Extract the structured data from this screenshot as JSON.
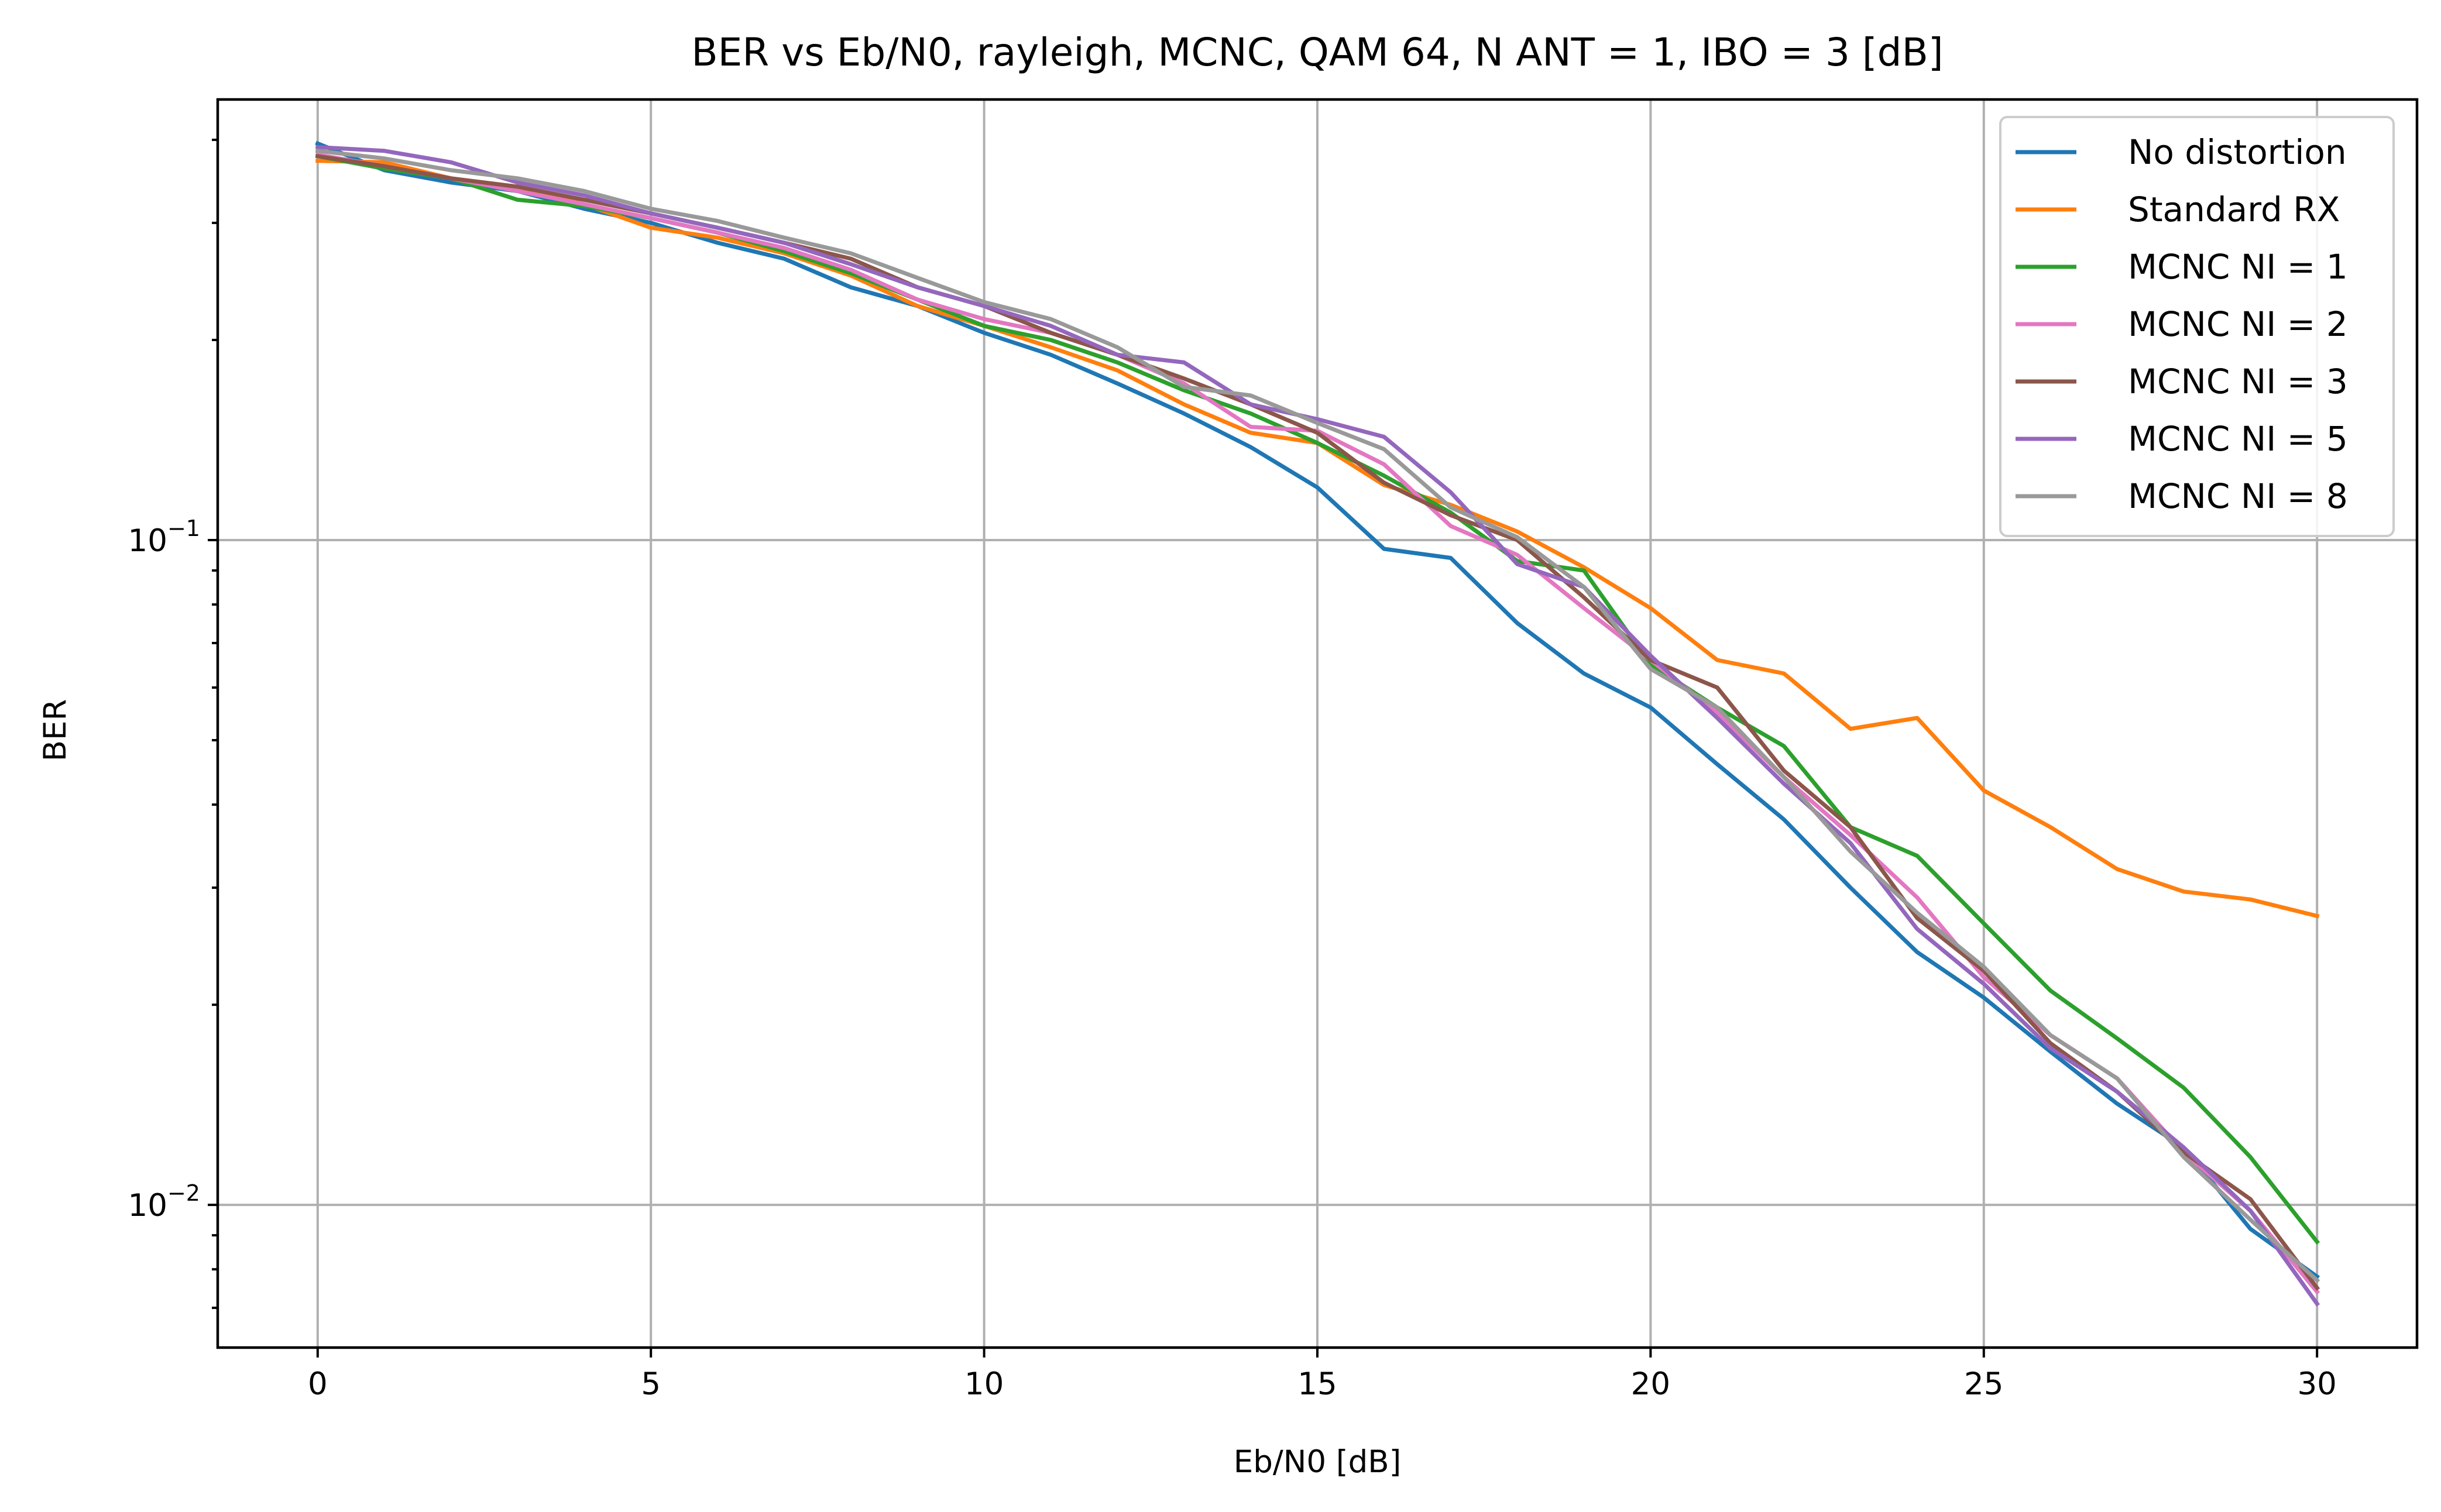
{
  "chart_data": {
    "type": "line",
    "title": "BER vs Eb/N0, rayleigh, MCNC, QAM 64, N ANT = 1, IBO = 3 [dB]",
    "xlabel": "Eb/N0 [dB]",
    "ylabel": "BER",
    "xlim": [
      -1.5,
      31.5
    ],
    "ylim": [
      0.0061,
      0.46
    ],
    "yscale": "log",
    "grid": true,
    "legend_position": "top-right",
    "x_ticks": [
      0,
      5,
      10,
      15,
      20,
      25,
      30
    ],
    "x_tick_labels": [
      "0",
      "5",
      "10",
      "15",
      "20",
      "25",
      "30"
    ],
    "y_major_ticks": [
      0.01,
      0.1
    ],
    "y_minor_ticks": [
      0.007,
      0.008,
      0.009,
      0.02,
      0.03,
      0.04,
      0.05,
      0.06,
      0.07,
      0.08,
      0.09,
      0.2,
      0.3,
      0.4
    ],
    "y_tick_labels": [
      {
        "base": "10",
        "exp": "−2"
      },
      {
        "base": "10",
        "exp": "−1"
      }
    ],
    "x": [
      0,
      1,
      2,
      3,
      4,
      5,
      6,
      7,
      8,
      9,
      10,
      11,
      12,
      13,
      14,
      15,
      16,
      17,
      18,
      19,
      20,
      21,
      22,
      23,
      24,
      25,
      26,
      27,
      28,
      29,
      30
    ],
    "series": [
      {
        "name": "No distortion",
        "color": "#1f77b4",
        "values": [
          0.395,
          0.36,
          0.345,
          0.335,
          0.315,
          0.3,
          0.28,
          0.265,
          0.24,
          0.225,
          0.205,
          0.19,
          0.172,
          0.155,
          0.138,
          0.12,
          0.097,
          0.094,
          0.075,
          0.063,
          0.056,
          0.046,
          0.038,
          0.03,
          0.024,
          0.0205,
          0.017,
          0.0142,
          0.0122,
          0.0092,
          0.0078
        ]
      },
      {
        "name": "Standard RX",
        "color": "#ff7f0e",
        "values": [
          0.372,
          0.37,
          0.35,
          0.34,
          0.32,
          0.295,
          0.285,
          0.27,
          0.25,
          0.225,
          0.21,
          0.195,
          0.18,
          0.16,
          0.145,
          0.14,
          0.121,
          0.113,
          0.103,
          0.091,
          0.079,
          0.066,
          0.063,
          0.052,
          0.054,
          0.042,
          0.037,
          0.032,
          0.0296,
          0.0288,
          0.0272
        ]
      },
      {
        "name": "MCNC NI = 1",
        "color": "#2ca02c",
        "values": [
          0.378,
          0.362,
          0.35,
          0.325,
          0.318,
          0.305,
          0.29,
          0.272,
          0.252,
          0.23,
          0.21,
          0.2,
          0.185,
          0.168,
          0.155,
          0.14,
          0.125,
          0.11,
          0.093,
          0.09,
          0.065,
          0.056,
          0.049,
          0.037,
          0.0335,
          0.0265,
          0.021,
          0.0178,
          0.015,
          0.0118,
          0.0088
        ]
      },
      {
        "name": "MCNC NI = 2",
        "color": "#e377c2",
        "values": [
          0.38,
          0.365,
          0.35,
          0.335,
          0.32,
          0.305,
          0.29,
          0.275,
          0.255,
          0.23,
          0.215,
          0.205,
          0.19,
          0.172,
          0.148,
          0.146,
          0.13,
          0.105,
          0.095,
          0.079,
          0.066,
          0.055,
          0.044,
          0.036,
          0.029,
          0.022,
          0.018,
          0.0155,
          0.012,
          0.0098,
          0.0074
        ]
      },
      {
        "name": "MCNC NI = 3",
        "color": "#8c564b",
        "values": [
          0.378,
          0.365,
          0.35,
          0.34,
          0.325,
          0.31,
          0.295,
          0.28,
          0.265,
          0.24,
          0.225,
          0.205,
          0.19,
          0.175,
          0.16,
          0.145,
          0.122,
          0.109,
          0.1,
          0.082,
          0.066,
          0.06,
          0.045,
          0.037,
          0.027,
          0.0225,
          0.0175,
          0.0148,
          0.012,
          0.0102,
          0.0075
        ]
      },
      {
        "name": "MCNC NI = 5",
        "color": "#9467bd",
        "values": [
          0.39,
          0.385,
          0.37,
          0.345,
          0.33,
          0.31,
          0.295,
          0.28,
          0.26,
          0.24,
          0.225,
          0.21,
          0.19,
          0.185,
          0.16,
          0.152,
          0.143,
          0.118,
          0.092,
          0.085,
          0.067,
          0.054,
          0.043,
          0.035,
          0.026,
          0.0215,
          0.0172,
          0.0148,
          0.0122,
          0.0098,
          0.0071
        ]
      },
      {
        "name": "MCNC NI = 8",
        "color": "#999999",
        "values": [
          0.385,
          0.375,
          0.36,
          0.35,
          0.335,
          0.315,
          0.302,
          0.285,
          0.27,
          0.248,
          0.228,
          0.215,
          0.195,
          0.17,
          0.165,
          0.15,
          0.137,
          0.112,
          0.101,
          0.085,
          0.064,
          0.056,
          0.044,
          0.034,
          0.0275,
          0.0228,
          0.018,
          0.0155,
          0.0118,
          0.0095,
          0.0077
        ]
      }
    ]
  }
}
